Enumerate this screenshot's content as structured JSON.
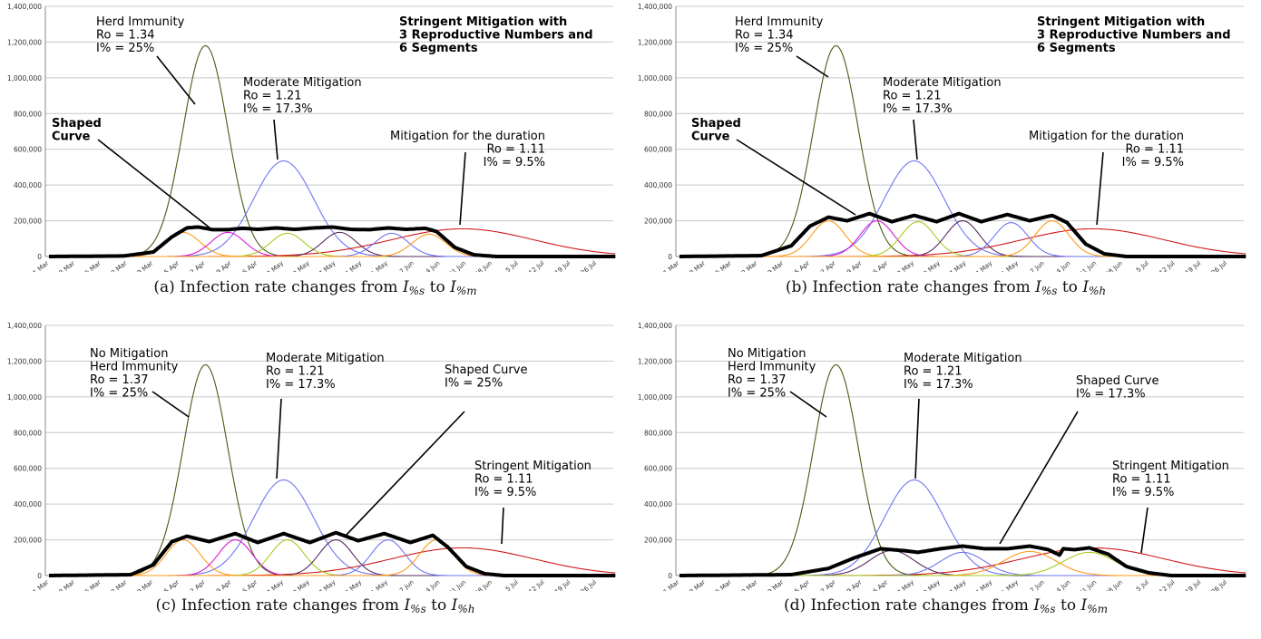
{
  "common": {
    "yticks": [
      "0",
      "200,000",
      "400,000",
      "600,000",
      "800,000",
      "1,000,000",
      "1,200,000",
      "1,400,000"
    ],
    "xticks": [
      "1 Mar",
      "8 Mar",
      "15 Mar",
      "22 Mar",
      "29 Mar",
      "5 Apr",
      "12 Apr",
      "19 Apr",
      "26 Apr",
      "3 May",
      "10 May",
      "17 May",
      "24 May",
      "31 May",
      "7 Jun",
      "14 Jun",
      "21 Jun",
      "28 Jun",
      "5 Jul",
      "12 Jul",
      "19 Jul",
      "26 Jul"
    ],
    "ylim": [
      0,
      1400000
    ]
  },
  "captions": [
    {
      "prefix": "(a) Infection rate changes from",
      "from": "I",
      "from_sub": "%s",
      "to_word": "to",
      "to": "I",
      "to_sub": "%m"
    },
    {
      "prefix": "(b) Infection rate changes from",
      "from": "I",
      "from_sub": "%s",
      "to_word": "to",
      "to": "I",
      "to_sub": "%h"
    },
    {
      "prefix": "(c) Infection rate changes from",
      "from": "I",
      "from_sub": "%s",
      "to_word": "to",
      "to": "I",
      "to_sub": "%h"
    },
    {
      "prefix": "(d) Infection rate changes from",
      "from": "I",
      "from_sub": "%s",
      "to_word": "to",
      "to": "I",
      "to_sub": "%m"
    }
  ],
  "chart_data": [
    {
      "type": "line",
      "x_unit": "day index from 1 Mar",
      "ylim": [
        0,
        1400000
      ],
      "series": [
        {
          "color": "#4b5a13",
          "peak_day": 42,
          "peak": 1180000,
          "width": 6
        },
        {
          "color": "#6f75f2",
          "peak_day": 63,
          "peak": 535000,
          "width": 8
        },
        {
          "color": "#d11a1a",
          "peak_day": 111,
          "peak": 155000,
          "width": 19
        },
        {
          "color": "#ff9b1a",
          "peak_day": 36,
          "peak": 135000,
          "width": 4.5
        },
        {
          "color": "#d81ad8",
          "peak_day": 48,
          "peak": 135000,
          "width": 4.5
        },
        {
          "color": "#a6cc1f",
          "peak_day": 64,
          "peak": 130000,
          "width": 4.5
        },
        {
          "color": "#5a2a5e",
          "peak_day": 78,
          "peak": 135000,
          "width": 4.5
        },
        {
          "color": "#6f75f2",
          "peak_day": 92,
          "peak": 130000,
          "width": 4.5
        },
        {
          "color": "#ff9b1a",
          "peak_day": 102,
          "peak": 125000,
          "width": 4.5
        },
        {
          "color": "#000000",
          "thick": true,
          "points": [
            [
              0,
              0
            ],
            [
              20,
              3000
            ],
            [
              28,
              25000
            ],
            [
              33,
              110000
            ],
            [
              37,
              160000
            ],
            [
              40,
              165000
            ],
            [
              44,
              150000
            ],
            [
              48,
              150000
            ],
            [
              52,
              158000
            ],
            [
              56,
              152000
            ],
            [
              61,
              160000
            ],
            [
              66,
              152000
            ],
            [
              71,
              160000
            ],
            [
              76,
              165000
            ],
            [
              81,
              152000
            ],
            [
              86,
              150000
            ],
            [
              91,
              160000
            ],
            [
              96,
              152000
            ],
            [
              101,
              158000
            ],
            [
              104,
              140000
            ],
            [
              109,
              50000
            ],
            [
              114,
              10000
            ],
            [
              120,
              0
            ],
            [
              152,
              0
            ]
          ]
        }
      ],
      "annotations": [
        {
          "lines": [
            "Herd Immunity",
            "Ro = 1.34",
            "I% = 25%"
          ],
          "bold": false
        },
        {
          "lines": [
            "Moderate Mitigation",
            "Ro = 1.21",
            "I% = 17.3%"
          ],
          "bold": false
        },
        {
          "lines": [
            "Mitigation for the duration",
            "Ro = 1.11",
            "I% = 9.5%"
          ],
          "bold": false,
          "align": "right"
        },
        {
          "lines": [
            "Shaped",
            "Curve"
          ],
          "bold": true
        },
        {
          "lines": [
            "Stringent Mitigation with",
            "3 Reproductive Numbers and",
            "6 Segments"
          ],
          "bold": true
        }
      ]
    },
    {
      "type": "line",
      "x_unit": "day index from 1 Mar",
      "ylim": [
        0,
        1400000
      ],
      "series": [
        {
          "color": "#4b5a13",
          "peak_day": 42,
          "peak": 1180000,
          "width": 6
        },
        {
          "color": "#6f75f2",
          "peak_day": 63,
          "peak": 535000,
          "width": 8
        },
        {
          "color": "#d11a1a",
          "peak_day": 111,
          "peak": 155000,
          "width": 19
        },
        {
          "color": "#ff9b1a",
          "peak_day": 40,
          "peak": 200000,
          "width": 4.5
        },
        {
          "color": "#d81ad8",
          "peak_day": 53,
          "peak": 200000,
          "width": 4.5
        },
        {
          "color": "#a6cc1f",
          "peak_day": 64,
          "peak": 195000,
          "width": 4.5
        },
        {
          "color": "#5a2a5e",
          "peak_day": 76,
          "peak": 200000,
          "width": 4.5
        },
        {
          "color": "#6f75f2",
          "peak_day": 89,
          "peak": 190000,
          "width": 4.5
        },
        {
          "color": "#ff9b1a",
          "peak_day": 100,
          "peak": 200000,
          "width": 4.5
        },
        {
          "color": "#000000",
          "thick": true,
          "points": [
            [
              0,
              0
            ],
            [
              22,
              5000
            ],
            [
              30,
              60000
            ],
            [
              35,
              170000
            ],
            [
              40,
              220000
            ],
            [
              45,
              200000
            ],
            [
              51,
              240000
            ],
            [
              57,
              195000
            ],
            [
              63,
              230000
            ],
            [
              69,
              195000
            ],
            [
              75,
              240000
            ],
            [
              81,
              195000
            ],
            [
              88,
              235000
            ],
            [
              94,
              200000
            ],
            [
              100,
              230000
            ],
            [
              104,
              190000
            ],
            [
              109,
              70000
            ],
            [
              114,
              15000
            ],
            [
              120,
              0
            ],
            [
              152,
              0
            ]
          ]
        }
      ],
      "annotations": [
        {
          "lines": [
            "Herd Immunity",
            "Ro = 1.34",
            "I% = 25%"
          ],
          "bold": false
        },
        {
          "lines": [
            "Moderate Mitigation",
            "Ro = 1.21",
            "I% = 17.3%"
          ],
          "bold": false
        },
        {
          "lines": [
            "Mitigation for the duration",
            "Ro = 1.11",
            "I% = 9.5%"
          ],
          "bold": false,
          "align": "right"
        },
        {
          "lines": [
            "Shaped",
            "Curve"
          ],
          "bold": true
        },
        {
          "lines": [
            "Stringent Mitigation with",
            "3 Reproductive Numbers and",
            "6 Segments"
          ],
          "bold": true
        }
      ]
    },
    {
      "type": "line",
      "x_unit": "day index from 1 Mar",
      "ylim": [
        0,
        1400000
      ],
      "series": [
        {
          "color": "#4b5a13",
          "peak_day": 42,
          "peak": 1180000,
          "width": 6
        },
        {
          "color": "#6f75f2",
          "peak_day": 63,
          "peak": 535000,
          "width": 8
        },
        {
          "color": "#d11a1a",
          "peak_day": 111,
          "peak": 155000,
          "width": 19
        },
        {
          "color": "#ff9b1a",
          "peak_day": 36,
          "peak": 200000,
          "width": 4.5
        },
        {
          "color": "#d81ad8",
          "peak_day": 50,
          "peak": 200000,
          "width": 4.5
        },
        {
          "color": "#a6cc1f",
          "peak_day": 64,
          "peak": 200000,
          "width": 4.5
        },
        {
          "color": "#5a2a5e",
          "peak_day": 77,
          "peak": 200000,
          "width": 4.5
        },
        {
          "color": "#6f75f2",
          "peak_day": 91,
          "peak": 200000,
          "width": 4.5
        },
        {
          "color": "#ff9b1a",
          "peak_day": 104,
          "peak": 200000,
          "width": 4.5
        },
        {
          "color": "#000000",
          "thick": true,
          "points": [
            [
              0,
              0
            ],
            [
              22,
              5000
            ],
            [
              28,
              60000
            ],
            [
              33,
              190000
            ],
            [
              37,
              220000
            ],
            [
              43,
              190000
            ],
            [
              50,
              235000
            ],
            [
              56,
              185000
            ],
            [
              63,
              235000
            ],
            [
              70,
              185000
            ],
            [
              77,
              240000
            ],
            [
              83,
              195000
            ],
            [
              90,
              235000
            ],
            [
              97,
              185000
            ],
            [
              103,
              225000
            ],
            [
              107,
              160000
            ],
            [
              112,
              50000
            ],
            [
              117,
              10000
            ],
            [
              122,
              0
            ],
            [
              152,
              0
            ]
          ]
        }
      ],
      "annotations": [
        {
          "lines": [
            "No Mitigation",
            "Herd Immunity",
            "Ro = 1.37",
            "I% = 25%"
          ],
          "bold": false
        },
        {
          "lines": [
            "Moderate Mitigation",
            "Ro = 1.21",
            "I% = 17.3%"
          ],
          "bold": false
        },
        {
          "lines": [
            "Shaped Curve",
            "I% = 25%"
          ],
          "bold": false
        },
        {
          "lines": [
            "Stringent Mitigation",
            "Ro = 1.11",
            "I% = 9.5%"
          ],
          "bold": false
        }
      ]
    },
    {
      "type": "line",
      "x_unit": "day index from 1 Mar",
      "ylim": [
        0,
        1400000
      ],
      "series": [
        {
          "color": "#4b5a13",
          "peak_day": 42,
          "peak": 1180000,
          "width": 6
        },
        {
          "color": "#6f75f2",
          "peak_day": 63,
          "peak": 535000,
          "width": 8
        },
        {
          "color": "#d11a1a",
          "peak_day": 111,
          "peak": 155000,
          "width": 19
        },
        {
          "color": "#5a2a5e",
          "peak_day": 57,
          "peak": 140000,
          "width": 6
        },
        {
          "color": "#6f75f2",
          "peak_day": 76,
          "peak": 130000,
          "width": 6
        },
        {
          "color": "#ff9b1a",
          "peak_day": 94,
          "peak": 135000,
          "width": 7
        },
        {
          "color": "#a6cc1f",
          "peak_day": 110,
          "peak": 130000,
          "width": 7
        },
        {
          "color": "#000000",
          "thick": true,
          "points": [
            [
              0,
              0
            ],
            [
              30,
              5000
            ],
            [
              40,
              40000
            ],
            [
              47,
              100000
            ],
            [
              54,
              150000
            ],
            [
              60,
              140000
            ],
            [
              64,
              130000
            ],
            [
              70,
              150000
            ],
            [
              76,
              165000
            ],
            [
              82,
              150000
            ],
            [
              88,
              150000
            ],
            [
              94,
              165000
            ],
            [
              99,
              145000
            ],
            [
              102,
              115000
            ],
            [
              103,
              150000
            ],
            [
              106,
              145000
            ],
            [
              110,
              155000
            ],
            [
              115,
              120000
            ],
            [
              120,
              50000
            ],
            [
              126,
              15000
            ],
            [
              132,
              0
            ],
            [
              152,
              0
            ]
          ]
        }
      ],
      "annotations": [
        {
          "lines": [
            "No Mitigation",
            "Herd Immunity",
            "Ro = 1.37",
            "I% = 25%"
          ],
          "bold": false
        },
        {
          "lines": [
            "Moderate Mitigation",
            "Ro = 1.21",
            "I% = 17.3%"
          ],
          "bold": false
        },
        {
          "lines": [
            "Shaped Curve",
            "I% = 17.3%"
          ],
          "bold": false
        },
        {
          "lines": [
            "Stringent Mitigation",
            "Ro = 1.11",
            "I% = 9.5%"
          ],
          "bold": false
        }
      ]
    }
  ]
}
